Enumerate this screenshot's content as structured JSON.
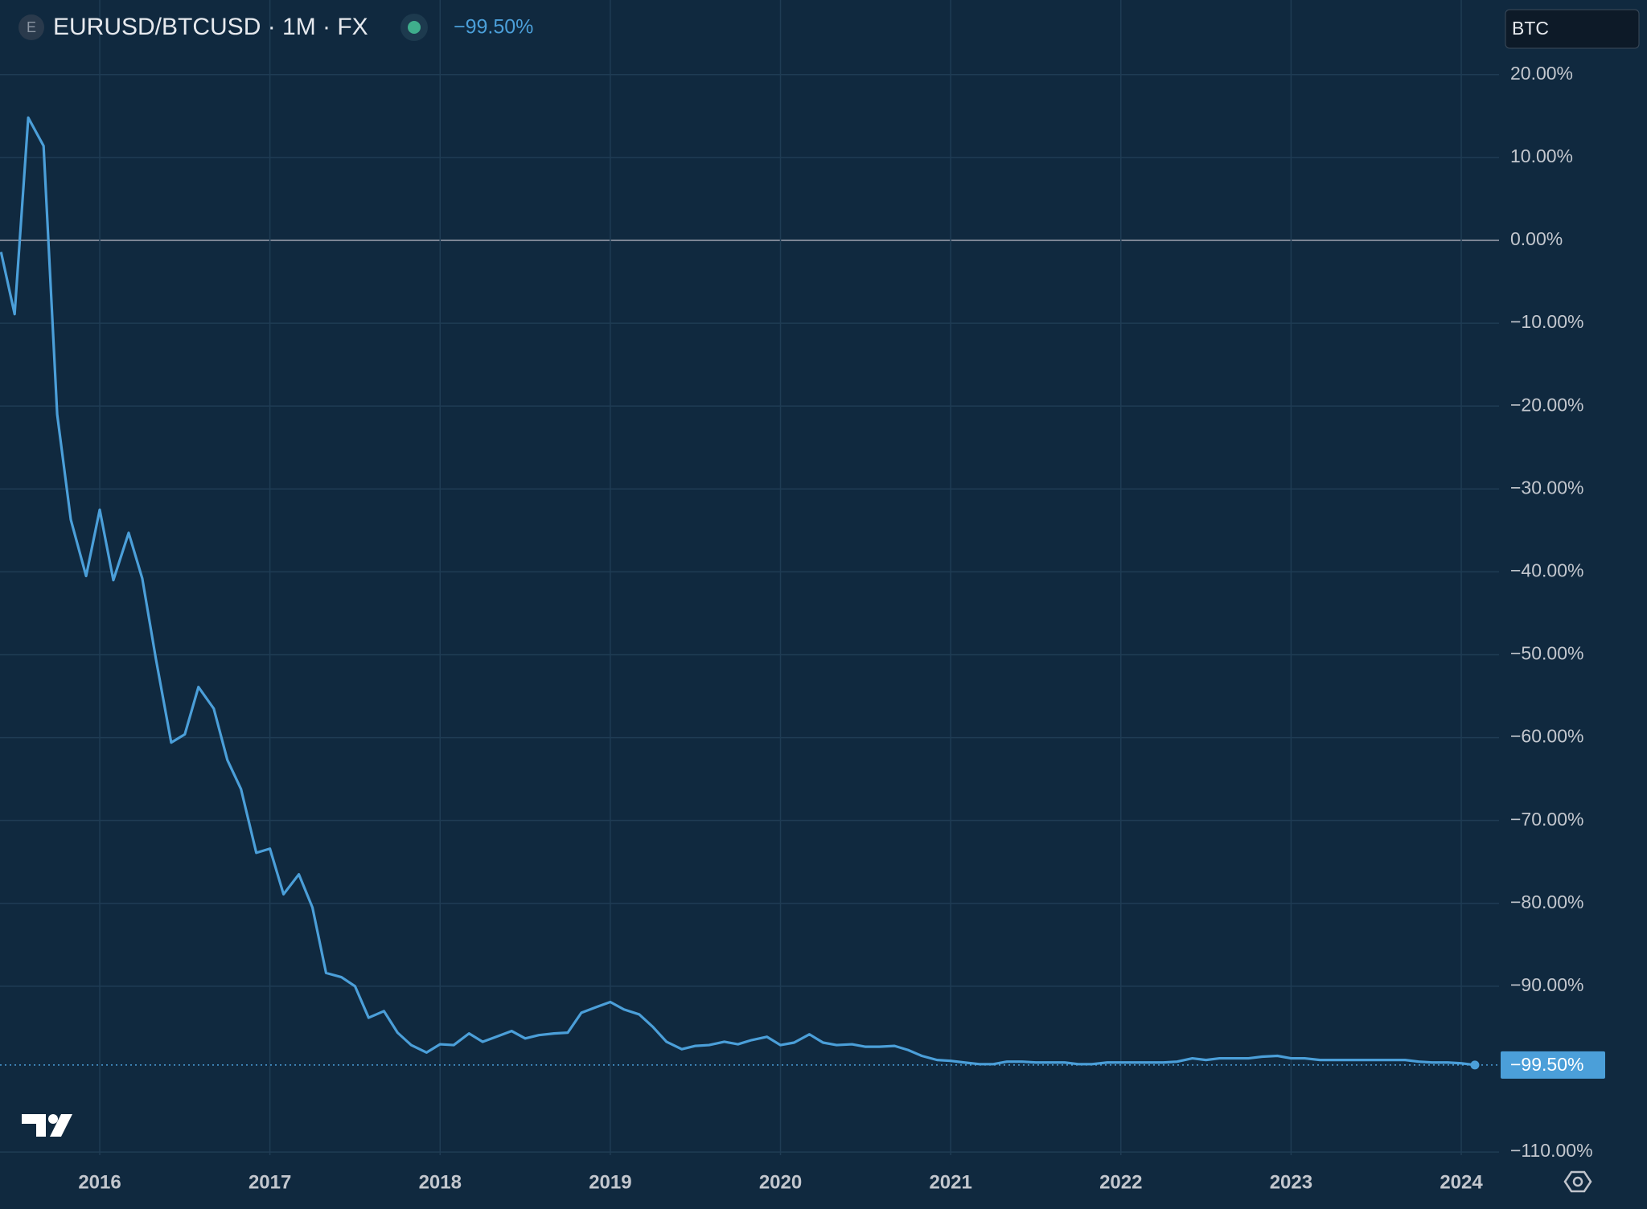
{
  "chart_data": {
    "type": "line",
    "title": "EURUSD/BTCUSD · 1M · FX",
    "symbol_icon": "E",
    "symbol_input": "BTC",
    "x": [
      2015.42,
      2015.5,
      2015.58,
      2015.67,
      2015.75,
      2015.83,
      2015.92,
      2016,
      2016.08,
      2016.17,
      2016.25,
      2016.33,
      2016.42,
      2016.5,
      2016.58,
      2016.67,
      2016.75,
      2016.83,
      2016.92,
      2017,
      2017.08,
      2017.17,
      2017.25,
      2017.33,
      2017.42,
      2017.5,
      2017.58,
      2017.67,
      2017.75,
      2017.83,
      2017.92,
      2018,
      2018.08,
      2018.17,
      2018.25,
      2018.33,
      2018.42,
      2018.5,
      2018.58,
      2018.67,
      2018.75,
      2018.83,
      2018.92,
      2019,
      2019.08,
      2019.17,
      2019.25,
      2019.33,
      2019.42,
      2019.5,
      2019.58,
      2019.67,
      2019.75,
      2019.83,
      2019.92,
      2020,
      2020.08,
      2020.17,
      2020.25,
      2020.33,
      2020.42,
      2020.5,
      2020.58,
      2020.67,
      2020.75,
      2020.83,
      2020.92,
      2021,
      2021.08,
      2021.17,
      2021.25,
      2021.33,
      2021.42,
      2021.5,
      2021.58,
      2021.67,
      2021.75,
      2021.83,
      2021.92,
      2022,
      2022.08,
      2022.17,
      2022.25,
      2022.33,
      2022.42,
      2022.5,
      2022.58,
      2022.67,
      2022.75,
      2022.83,
      2022.92,
      2023,
      2023.08,
      2023.17,
      2023.25,
      2023.33,
      2023.42,
      2023.5,
      2023.58,
      2023.67,
      2023.75,
      2023.83,
      2023.92,
      2024,
      2024.08
    ],
    "series": [
      {
        "name": "EURUSD/BTCUSD",
        "color": "#4b9fd9",
        "values": [
          -1.4,
          -8.9,
          14.8,
          11.4,
          -21.0,
          -33.7,
          -40.5,
          -32.5,
          -41.0,
          -35.3,
          -40.8,
          -50.5,
          -60.6,
          -59.6,
          -53.9,
          -56.5,
          -62.7,
          -66.2,
          -73.9,
          -73.4,
          -78.9,
          -76.5,
          -80.5,
          -88.4,
          -88.9,
          -90.0,
          -93.8,
          -93.0,
          -95.6,
          -97.1,
          -98.0,
          -97.0,
          -97.1,
          -95.7,
          -96.7,
          -96.1,
          -95.4,
          -96.3,
          -95.9,
          -95.7,
          -95.6,
          -93.2,
          -92.5,
          -91.9,
          -92.8,
          -93.4,
          -94.9,
          -96.7,
          -97.6,
          -97.2,
          -97.1,
          -96.7,
          -97.0,
          -96.5,
          -96.1,
          -97.1,
          -96.8,
          -95.8,
          -96.8,
          -97.1,
          -97.0,
          -97.3,
          -97.3,
          -97.2,
          -97.7,
          -98.4,
          -98.9,
          -99.0,
          -99.2,
          -99.4,
          -99.4,
          -99.1,
          -99.1,
          -99.2,
          -99.2,
          -99.2,
          -99.4,
          -99.4,
          -99.2,
          -99.2,
          -99.2,
          -99.2,
          -99.2,
          -99.1,
          -98.7,
          -98.9,
          -98.7,
          -98.7,
          -98.7,
          -98.5,
          -98.4,
          -98.7,
          -98.7,
          -98.9,
          -98.9,
          -98.9,
          -98.9,
          -98.9,
          -98.9,
          -98.9,
          -99.1,
          -99.2,
          -99.2,
          -99.3,
          -99.5
        ],
        "value_labels": [
          null,
          null,
          null,
          null,
          null,
          null,
          null,
          null,
          null,
          null,
          null,
          null,
          null,
          null,
          null,
          null,
          null,
          null,
          null,
          null,
          null,
          null,
          null,
          null,
          null,
          null,
          null,
          null,
          null,
          null,
          null,
          null,
          null,
          null,
          null,
          null,
          null,
          null,
          null,
          null,
          null,
          null,
          null,
          null,
          null,
          null,
          null,
          null,
          null,
          null,
          null,
          null,
          null,
          null,
          null,
          null,
          null,
          null,
          null,
          null,
          null,
          null,
          null,
          null,
          null,
          null,
          null,
          null,
          null,
          null,
          null,
          null,
          null,
          null,
          null,
          null,
          null,
          null,
          null,
          null,
          null,
          null,
          null,
          null,
          null,
          null,
          null,
          null,
          null,
          null,
          null,
          null,
          null,
          null,
          null,
          null,
          null,
          null,
          null,
          null,
          null,
          null,
          null,
          null,
          "−99.50%"
        ]
      }
    ],
    "xlim": [
      2015.414,
      2024.222
    ],
    "xticks": [
      2016,
      2017,
      2018,
      2019,
      2020,
      2021,
      2022,
      2023,
      2024
    ],
    "ylim": [
      -110.38,
      29.0
    ],
    "yticks": [
      {
        "value": 20,
        "label": "20.00%"
      },
      {
        "value": 10,
        "label": "10.00%"
      },
      {
        "value": 0,
        "label": "0.00%"
      },
      {
        "value": -10,
        "label": "−10.00%"
      },
      {
        "value": -20,
        "label": "−20.00%"
      },
      {
        "value": -30,
        "label": "−30.00%"
      },
      {
        "value": -40,
        "label": "−40.00%"
      },
      {
        "value": -50,
        "label": "−50.00%"
      },
      {
        "value": -60,
        "label": "−60.00%"
      },
      {
        "value": -70,
        "label": "−70.00%"
      },
      {
        "value": -80,
        "label": "−80.00%"
      },
      {
        "value": -90,
        "label": "−90.00%"
      },
      {
        "value": -110,
        "label": "−110.00%"
      }
    ],
    "grid": true
  }
}
